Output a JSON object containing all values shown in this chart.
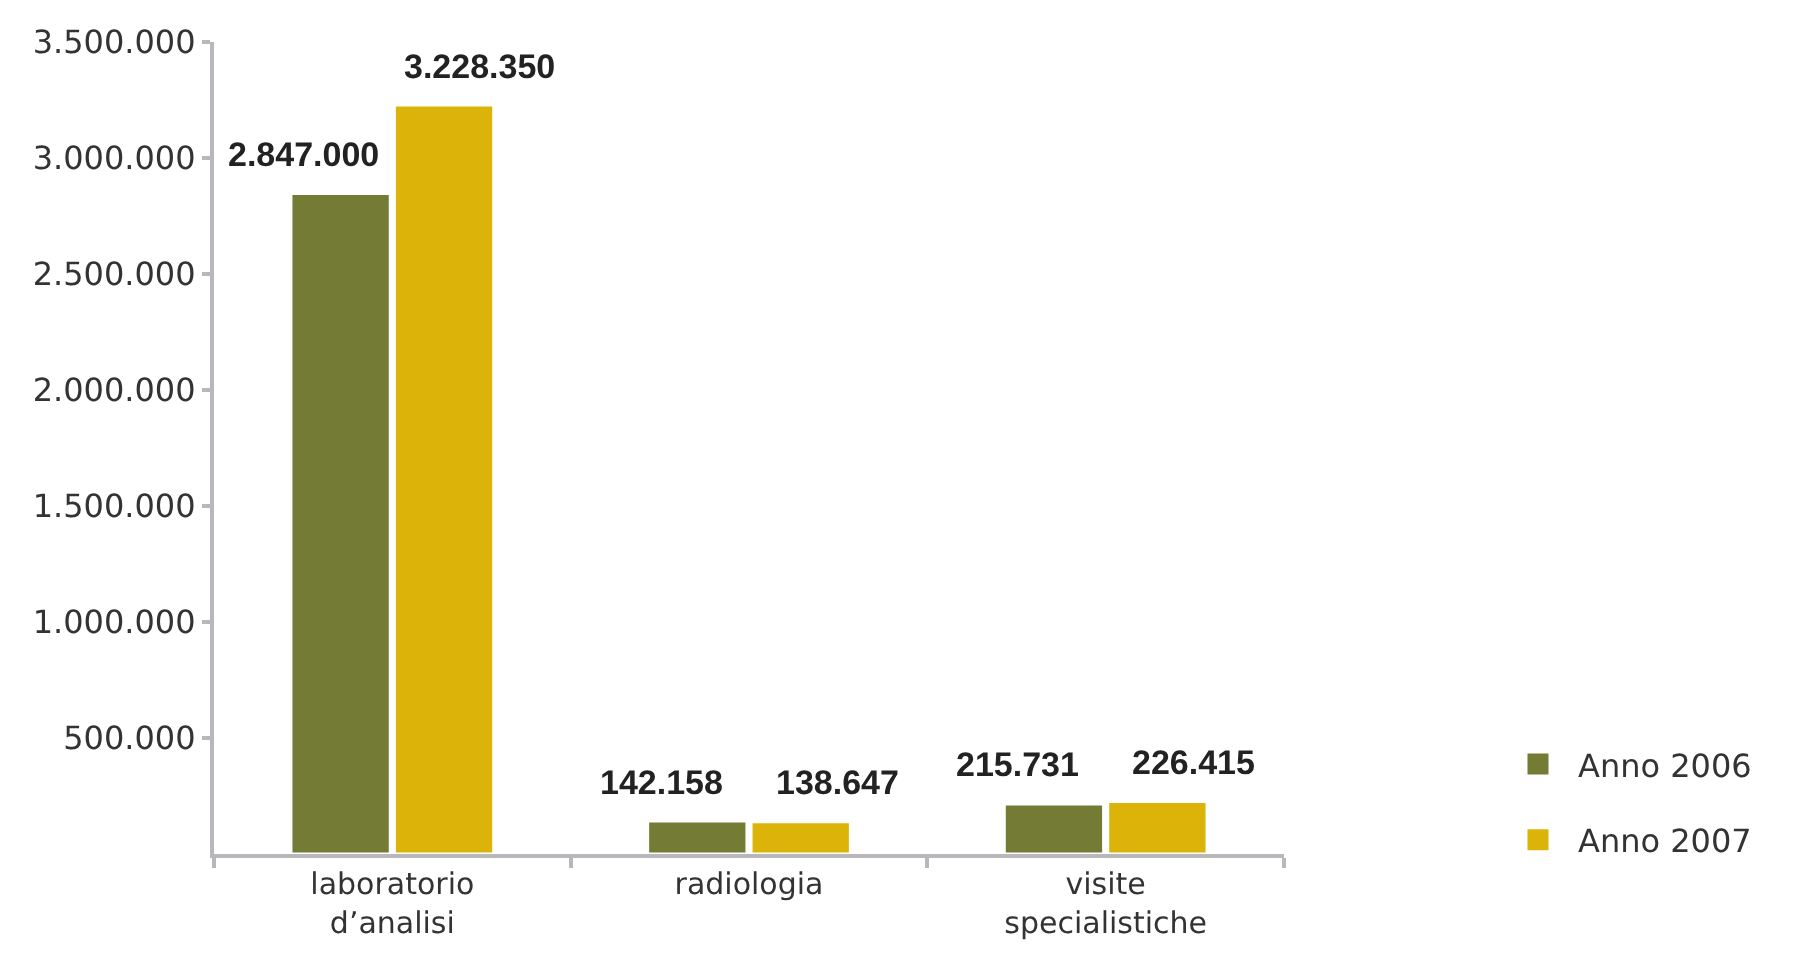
{
  "chart_data": {
    "type": "bar",
    "categories": [
      "laboratorio d’analisi",
      "radiologia",
      "visite specialistiche"
    ],
    "series": [
      {
        "name": "Anno 2006",
        "color": "#737b34",
        "values": [
          2847000,
          142158,
          215731
        ],
        "value_labels": [
          "2.847.000",
          "142.158",
          "215.731"
        ]
      },
      {
        "name": "Anno 2007",
        "color": "#dcb308",
        "values": [
          3228350,
          138647,
          226415
        ],
        "value_labels": [
          "3.228.350",
          "138.647",
          "226.415"
        ]
      }
    ],
    "ylim": [
      0,
      3500000
    ],
    "yticks": [
      {
        "value": 500000,
        "label": "500.000"
      },
      {
        "value": 1000000,
        "label": "1.000.000"
      },
      {
        "value": 1500000,
        "label": "1.500.000"
      },
      {
        "value": 2000000,
        "label": "2.000.000"
      },
      {
        "value": 2500000,
        "label": "2.500.000"
      },
      {
        "value": 3000000,
        "label": "3.000.000"
      },
      {
        "value": 3500000,
        "label": "3.500.000"
      }
    ],
    "grid": false,
    "legend": "bottom right"
  }
}
